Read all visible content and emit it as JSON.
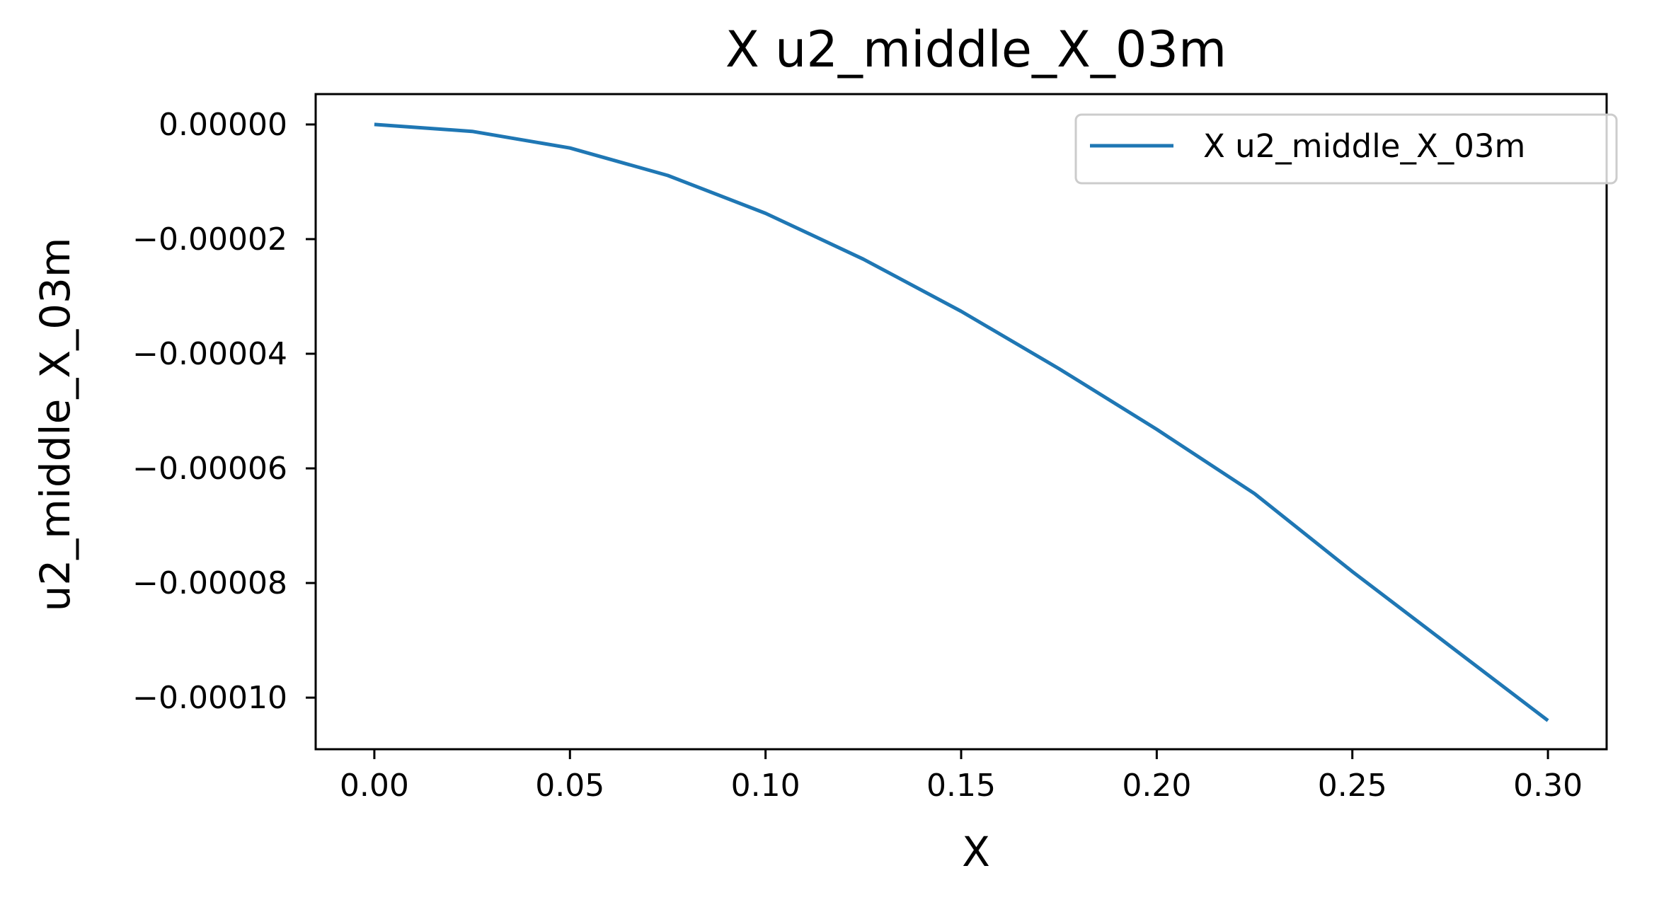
{
  "chart_data": {
    "type": "line",
    "title": "X u2_middle_X_03m",
    "xlabel": "X",
    "ylabel": "u2_middle_X_03m",
    "xlim": [
      -0.015,
      0.315
    ],
    "ylim": [
      -0.000109,
      5.3e-06
    ],
    "xticks": [
      0.0,
      0.05,
      0.1,
      0.15,
      0.2,
      0.25,
      0.3
    ],
    "xtick_labels": [
      "0.00",
      "0.05",
      "0.10",
      "0.15",
      "0.20",
      "0.25",
      "0.30"
    ],
    "yticks": [
      0.0,
      -2e-05,
      -4e-05,
      -6e-05,
      -8e-05,
      -0.0001
    ],
    "ytick_labels": [
      "0.00000",
      "−0.00002",
      "−0.00004",
      "−0.00006",
      "−0.00008",
      "−0.00010"
    ],
    "grid": false,
    "legend_position": "upper right",
    "series": [
      {
        "name": "X u2_middle_X_03m",
        "color": "#1f77b4",
        "x": [
          0.0,
          0.025,
          0.05,
          0.075,
          0.1,
          0.125,
          0.15,
          0.175,
          0.2,
          0.225,
          0.25,
          0.275,
          0.3
        ],
        "y": [
          0.0,
          -1.2e-06,
          -4.1e-06,
          -8.9e-06,
          -1.55e-05,
          -2.35e-05,
          -3.26e-05,
          -4.26e-05,
          -5.32e-05,
          -6.44e-05,
          -7.8e-05,
          -9.1e-05,
          -0.000104
        ]
      }
    ]
  }
}
